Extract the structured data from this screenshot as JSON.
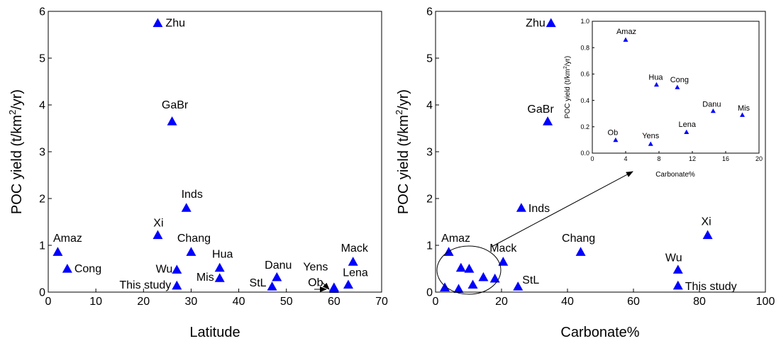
{
  "chart_data": [
    {
      "type": "scatter",
      "xlabel": "Latitude",
      "ylabel_parts": {
        "pre": "POC yield (t/km",
        "sup": "2",
        "post": "/yr)"
      },
      "xlim": [
        0,
        70
      ],
      "ylim": [
        0,
        6
      ],
      "xticks": [
        "0",
        "10",
        "20",
        "30",
        "40",
        "50",
        "60",
        "70"
      ],
      "yticks": [
        "0",
        "1",
        "2",
        "3",
        "4",
        "5",
        "6"
      ],
      "marker": "triangle",
      "marker_color": "#0000ff",
      "points": [
        {
          "label": "Zhu",
          "x": 23,
          "y": 5.75
        },
        {
          "label": "GaBr",
          "x": 26,
          "y": 3.65
        },
        {
          "label": "Inds",
          "x": 29,
          "y": 1.8
        },
        {
          "label": "Xi",
          "x": 23,
          "y": 1.22
        },
        {
          "label": "Amaz",
          "x": 2,
          "y": 0.86
        },
        {
          "label": "Cong",
          "x": 4,
          "y": 0.5
        },
        {
          "label": "Chang",
          "x": 30,
          "y": 0.86
        },
        {
          "label": "Wu",
          "x": 27,
          "y": 0.48
        },
        {
          "label": "This study",
          "x": 27,
          "y": 0.14
        },
        {
          "label": "Hua",
          "x": 36,
          "y": 0.52
        },
        {
          "label": "Mis",
          "x": 36,
          "y": 0.3
        },
        {
          "label": "StL",
          "x": 47,
          "y": 0.12
        },
        {
          "label": "Danu",
          "x": 48,
          "y": 0.32
        },
        {
          "label": "Yens",
          "x": 60,
          "y": 0.07
        },
        {
          "label": "Ob",
          "x": 60,
          "y": 0.1
        },
        {
          "label": "Lena",
          "x": 63,
          "y": 0.16
        },
        {
          "label": "Mack",
          "x": 64,
          "y": 0.65
        }
      ]
    },
    {
      "type": "scatter",
      "xlabel": "Carbonate%",
      "ylabel_parts": {
        "pre": "POC yield (t/km",
        "sup": "2",
        "post": "/yr)"
      },
      "xlim": [
        0,
        100
      ],
      "ylim": [
        0,
        6
      ],
      "xticks": [
        "0",
        "20",
        "40",
        "60",
        "80",
        "100"
      ],
      "yticks": [
        "0",
        "1",
        "2",
        "3",
        "4",
        "5",
        "6"
      ],
      "marker": "triangle",
      "marker_color": "#0000ff",
      "points": [
        {
          "label": "Zhu",
          "x": 35,
          "y": 5.75
        },
        {
          "label": "GaBr",
          "x": 34,
          "y": 3.65
        },
        {
          "label": "Inds",
          "x": 26,
          "y": 1.8
        },
        {
          "label": "Xi",
          "x": 82.5,
          "y": 1.22
        },
        {
          "label": "Chang",
          "x": 44,
          "y": 0.86
        },
        {
          "label": "Wu",
          "x": 73.5,
          "y": 0.48
        },
        {
          "label": "This study",
          "x": 73.5,
          "y": 0.14
        },
        {
          "label": "Amaz",
          "x": 4,
          "y": 0.86
        },
        {
          "label": "Mack",
          "x": 20.5,
          "y": 0.65
        },
        {
          "label": "StL",
          "x": 25,
          "y": 0.12
        },
        {
          "label": "",
          "x": 2.8,
          "y": 0.1
        },
        {
          "label": "",
          "x": 7,
          "y": 0.07
        },
        {
          "label": "",
          "x": 7.7,
          "y": 0.52
        },
        {
          "label": "",
          "x": 10.2,
          "y": 0.5
        },
        {
          "label": "",
          "x": 11.3,
          "y": 0.16
        },
        {
          "label": "",
          "x": 14.5,
          "y": 0.32
        },
        {
          "label": "",
          "x": 18,
          "y": 0.29
        }
      ]
    },
    {
      "type": "scatter",
      "xlabel": "Carbonate%",
      "ylabel_parts": {
        "pre": "POC yield (t/km",
        "sup": "2",
        "post": "/yr)"
      },
      "xlim": [
        0,
        20
      ],
      "ylim": [
        0,
        1.0
      ],
      "xticks": [
        "0",
        "4",
        "8",
        "12",
        "16",
        "20"
      ],
      "yticks": [
        "0.0",
        "0.2",
        "0.4",
        "0.6",
        "0.8",
        "1.0"
      ],
      "marker": "triangle",
      "marker_color": "#0000ff",
      "points": [
        {
          "label": "Amaz",
          "x": 4,
          "y": 0.86
        },
        {
          "label": "Hua",
          "x": 7.7,
          "y": 0.52
        },
        {
          "label": "Cong",
          "x": 10.2,
          "y": 0.5
        },
        {
          "label": "Danu",
          "x": 14.5,
          "y": 0.32
        },
        {
          "label": "Mis",
          "x": 18,
          "y": 0.29
        },
        {
          "label": "Lena",
          "x": 11.3,
          "y": 0.16
        },
        {
          "label": "Ob",
          "x": 2.8,
          "y": 0.1
        },
        {
          "label": "Yens",
          "x": 7,
          "y": 0.07
        }
      ]
    }
  ]
}
